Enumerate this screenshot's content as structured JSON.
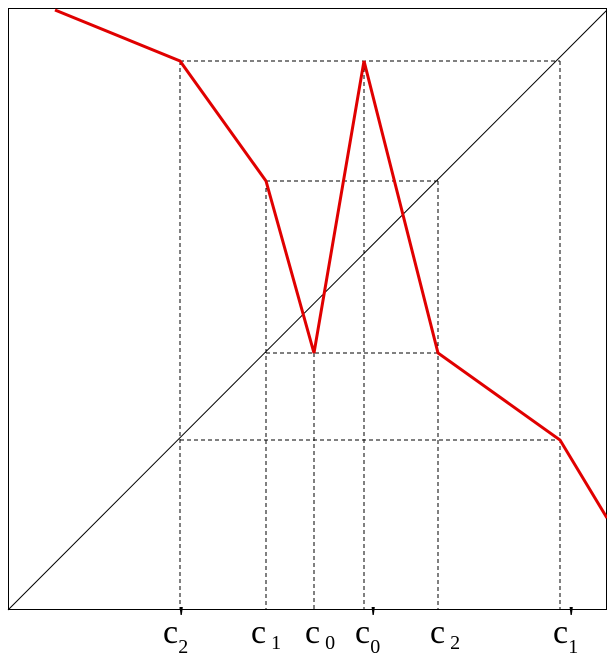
{
  "diagram": {
    "labels": [
      {
        "id": "c2p",
        "base": "c",
        "prime": "'",
        "sub": "2"
      },
      {
        "id": "c1",
        "base": "c",
        "prime": "",
        "sub": "1"
      },
      {
        "id": "c0",
        "base": "c",
        "prime": "",
        "sub": "0"
      },
      {
        "id": "c0p",
        "base": "c",
        "prime": "'",
        "sub": "0"
      },
      {
        "id": "c2",
        "base": "c",
        "prime": "",
        "sub": "2"
      },
      {
        "id": "c1p",
        "base": "c",
        "prime": "'",
        "sub": "1"
      }
    ],
    "colors": {
      "graph": "#e00000",
      "diagonal": "#000000",
      "guides": "#000000"
    }
  }
}
